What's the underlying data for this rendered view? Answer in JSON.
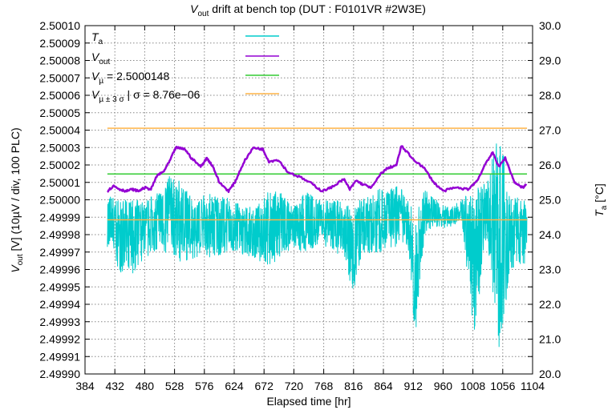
{
  "chart_data": {
    "type": "line",
    "title": {
      "main": "V",
      "sub": "out",
      "rest": " drift at bench top (DUT : F0101VR #2W3E)"
    },
    "xlabel": "Elapsed time [hr]",
    "ylabel": {
      "main": "V",
      "sub": "out",
      "rest": " [V] (10µV / div, 100 PLC)"
    },
    "y2label": {
      "main": "T",
      "sub": "a",
      "rest": " [°C]"
    },
    "xlim": [
      384,
      1104
    ],
    "xticks": [
      "384",
      "432",
      "480",
      "528",
      "576",
      "624",
      "672",
      "720",
      "768",
      "816",
      "864",
      "912",
      "960",
      "1008",
      "1056",
      "1104"
    ],
    "ylim": [
      2.4999,
      2.5001
    ],
    "yticks": [
      "2.49990",
      "2.49991",
      "2.49992",
      "2.49993",
      "2.49994",
      "2.49995",
      "2.49996",
      "2.49997",
      "2.49998",
      "2.49999",
      "2.50000",
      "2.50001",
      "2.50002",
      "2.50003",
      "2.50004",
      "2.50005",
      "2.50006",
      "2.50007",
      "2.50008",
      "2.50009",
      "2.50010"
    ],
    "y2lim": [
      20.0,
      30.0
    ],
    "y2ticks": [
      "20.0",
      "21.0",
      "22.0",
      "23.0",
      "24.0",
      "25.0",
      "26.0",
      "27.0",
      "28.0",
      "29.0",
      "30.0"
    ],
    "grid": true,
    "legend_position": "top-left",
    "legend": [
      {
        "main": "T",
        "sub": "a",
        "rest": "",
        "color": "#00cccc"
      },
      {
        "main": "V",
        "sub": "out",
        "rest": "",
        "color": "#9400d3"
      },
      {
        "main": "V",
        "sub": "µ",
        "rest": " = 2.5000148",
        "color": "#33cc33"
      },
      {
        "main": "V",
        "sub": "µ ± 3 σ",
        "rest": " | σ = 8.76e−06",
        "color": "#ffb347"
      }
    ],
    "mean": 2.5000148,
    "sigma": 8.76e-06,
    "series": [
      {
        "name": "Vout",
        "axis": "left",
        "color": "#9400d3",
        "x": [
          420,
          430,
          440,
          450,
          460,
          470,
          480,
          490,
          500,
          510,
          520,
          530,
          545,
          555,
          570,
          580,
          590,
          600,
          615,
          625,
          640,
          655,
          670,
          680,
          695,
          710,
          730,
          750,
          765,
          780,
          800,
          810,
          820,
          830,
          845,
          860,
          870,
          885,
          893,
          910,
          930,
          945,
          960,
          980,
          1000,
          1015,
          1030,
          1040,
          1050,
          1060,
          1075,
          1088,
          1095
        ],
        "y": [
          2.500005,
          2.500008,
          2.500006,
          2.500005,
          2.500006,
          2.500005,
          2.500007,
          2.500006,
          2.500014,
          2.500016,
          2.500022,
          2.50003,
          2.500029,
          2.500024,
          2.500019,
          2.500024,
          2.500019,
          2.50001,
          2.500005,
          2.50001,
          2.500022,
          2.50003,
          2.500029,
          2.500022,
          2.500023,
          2.500016,
          2.500013,
          2.500009,
          2.500005,
          2.500007,
          2.500012,
          2.500006,
          2.500011,
          2.500009,
          2.500007,
          2.500015,
          2.500018,
          2.50002,
          2.500031,
          2.500024,
          2.500018,
          2.50001,
          2.500005,
          2.500007,
          2.500006,
          2.500011,
          2.500022,
          2.500027,
          2.500019,
          2.500024,
          2.50001,
          2.500007,
          2.500009
        ]
      },
      {
        "name": "Ta",
        "axis": "right",
        "color": "#00cccc",
        "x": [
          420,
          440,
          460,
          480,
          500,
          520,
          540,
          560,
          580,
          600,
          620,
          640,
          660,
          680,
          700,
          720,
          740,
          760,
          780,
          800,
          815,
          830,
          850,
          870,
          890,
          905,
          915,
          930,
          950,
          970,
          990,
          1010,
          1030,
          1050,
          1070,
          1095
        ],
        "low": [
          23.6,
          22.9,
          22.8,
          23.3,
          23.5,
          23.3,
          23.2,
          23.3,
          23.3,
          23.4,
          23.5,
          23.4,
          23.3,
          23.0,
          23.4,
          23.6,
          23.4,
          23.7,
          23.5,
          23.4,
          22.3,
          23.5,
          23.4,
          23.6,
          23.6,
          23.5,
          21.0,
          24.0,
          24.2,
          24.2,
          24.4,
          21.0,
          24.0,
          20.7,
          23.0,
          23.2
        ],
        "high": [
          25.2,
          25.0,
          25.0,
          25.0,
          25.2,
          25.7,
          25.5,
          25.0,
          25.2,
          25.2,
          25.0,
          24.8,
          24.8,
          25.3,
          25.2,
          24.8,
          25.3,
          25.0,
          25.0,
          25.0,
          25.0,
          25.0,
          25.3,
          25.4,
          25.4,
          25.0,
          24.5,
          25.3,
          25.0,
          24.8,
          25.0,
          25.3,
          25.5,
          27.0,
          25.2,
          25.0
        ]
      }
    ]
  }
}
